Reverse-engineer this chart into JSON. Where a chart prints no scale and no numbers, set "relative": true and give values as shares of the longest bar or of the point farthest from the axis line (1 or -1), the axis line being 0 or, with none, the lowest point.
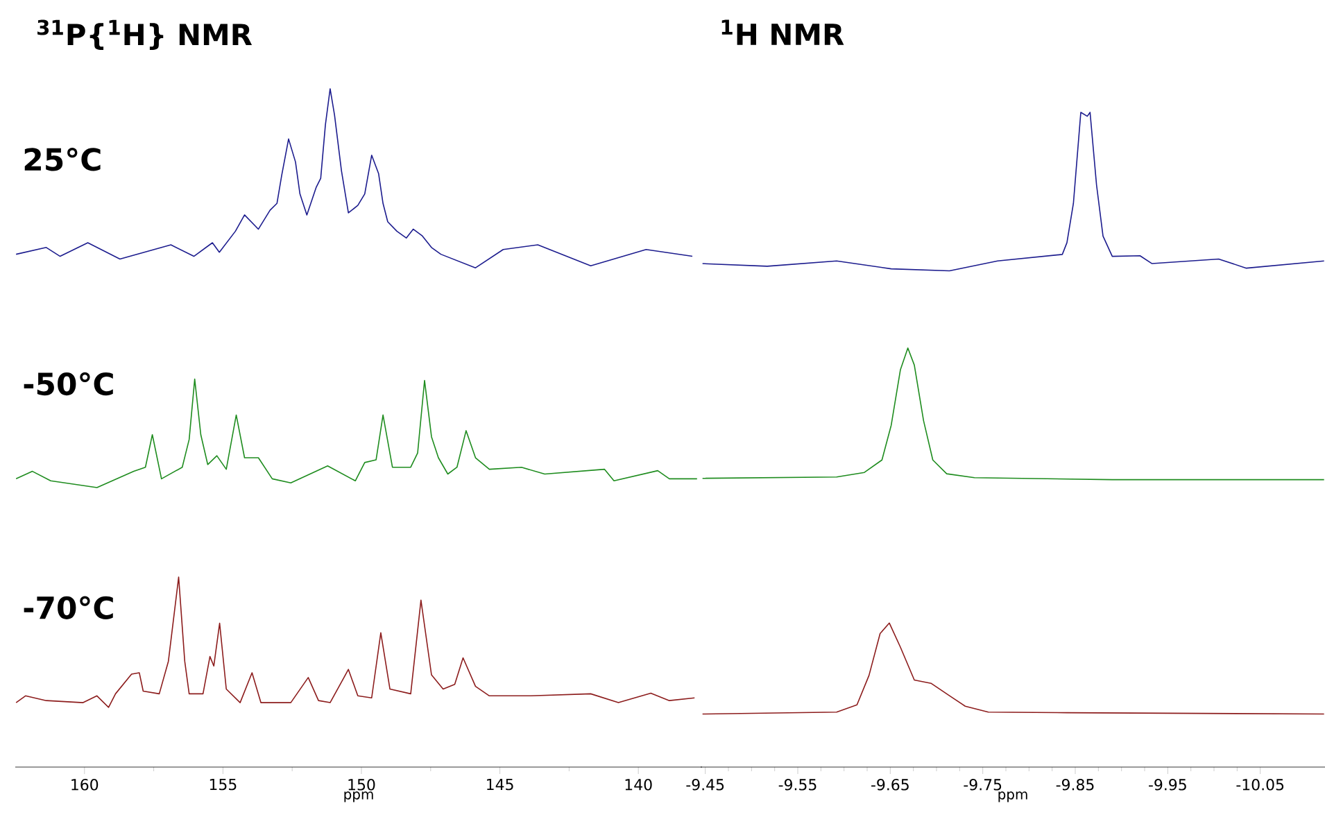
{
  "chart_data": [
    {
      "type": "line",
      "title": "$^{31}$P{$^{1}$H} NMR",
      "xlabel": "ppm",
      "relative": true,
      "xlim": [
        162.5,
        137.7
      ],
      "xticks": [
        160,
        155,
        150,
        145,
        140
      ],
      "series": [
        {
          "name": "25°C",
          "color": "#1c1c8e",
          "x": [
            162.47,
            161.38,
            160.88,
            159.88,
            158.72,
            156.88,
            156.05,
            155.38,
            155.13,
            154.55,
            154.22,
            153.72,
            153.3,
            153.05,
            152.88,
            152.63,
            152.38,
            152.22,
            151.97,
            151.63,
            151.47,
            151.3,
            151.13,
            150.97,
            150.72,
            150.47,
            150.13,
            149.88,
            149.63,
            149.38,
            149.22,
            149.05,
            148.72,
            148.38,
            148.13,
            147.8,
            147.47,
            147.13,
            145.88,
            144.88,
            143.63,
            141.72,
            139.72,
            138.05
          ],
          "values": [
            0.756,
            0.766,
            0.753,
            0.773,
            0.749,
            0.77,
            0.753,
            0.773,
            0.759,
            0.79,
            0.814,
            0.793,
            0.821,
            0.831,
            0.872,
            0.926,
            0.892,
            0.845,
            0.814,
            0.855,
            0.868,
            0.947,
            1,
            0.961,
            0.879,
            0.817,
            0.828,
            0.845,
            0.902,
            0.875,
            0.831,
            0.804,
            0.79,
            0.78,
            0.793,
            0.783,
            0.766,
            0.756,
            0.736,
            0.763,
            0.77,
            0.739,
            0.763,
            0.753
          ]
        },
        {
          "name": "-50°C",
          "color": "#1e8c1e",
          "x": [
            162.47,
            161.88,
            161.22,
            159.55,
            158.22,
            157.8,
            157.55,
            157.22,
            156.47,
            156.22,
            156.02,
            155.8,
            155.55,
            155.22,
            154.88,
            154.52,
            154.22,
            153.72,
            153.22,
            152.55,
            151.22,
            150.22,
            149.88,
            149.47,
            149.22,
            148.88,
            148.22,
            147.97,
            147.72,
            147.47,
            147.22,
            146.88,
            146.55,
            146.22,
            145.88,
            145.38,
            144.22,
            143.38,
            141.22,
            140.88,
            139.3,
            138.88,
            137.88
          ],
          "values": [
            0.425,
            0.436,
            0.422,
            0.412,
            0.436,
            0.442,
            0.49,
            0.425,
            0.442,
            0.483,
            0.572,
            0.49,
            0.446,
            0.459,
            0.439,
            0.519,
            0.456,
            0.456,
            0.425,
            0.419,
            0.444,
            0.422,
            0.449,
            0.453,
            0.519,
            0.442,
            0.442,
            0.463,
            0.57,
            0.487,
            0.456,
            0.432,
            0.442,
            0.496,
            0.456,
            0.439,
            0.442,
            0.432,
            0.439,
            0.422,
            0.437,
            0.425,
            0.425
          ]
        },
        {
          "name": "-70°C",
          "color": "#8c1c1c",
          "x": [
            162.47,
            162.13,
            161.38,
            160.05,
            159.55,
            159.13,
            158.88,
            158.3,
            158.02,
            157.88,
            157.3,
            156.97,
            156.6,
            156.38,
            156.22,
            155.72,
            155.47,
            155.33,
            155.12,
            154.88,
            154.38,
            153.95,
            153.63,
            152.55,
            151.92,
            151.55,
            151.13,
            150.63,
            150.47,
            150.13,
            149.63,
            149.3,
            148.97,
            148.22,
            147.85,
            147.47,
            147.05,
            146.63,
            146.33,
            145.88,
            145.38,
            143.88,
            141.72,
            140.72,
            139.55,
            138.88,
            137.97
          ],
          "values": [
            0.095,
            0.105,
            0.098,
            0.095,
            0.105,
            0.088,
            0.108,
            0.137,
            0.139,
            0.112,
            0.108,
            0.156,
            0.28,
            0.156,
            0.108,
            0.108,
            0.163,
            0.149,
            0.212,
            0.115,
            0.095,
            0.139,
            0.095,
            0.095,
            0.132,
            0.098,
            0.095,
            0.132,
            0.144,
            0.105,
            0.102,
            0.198,
            0.115,
            0.108,
            0.246,
            0.136,
            0.115,
            0.122,
            0.161,
            0.119,
            0.105,
            0.105,
            0.108,
            0.095,
            0.109,
            0.098,
            0.102
          ]
        }
      ]
    },
    {
      "type": "line",
      "title": "$^{1}$H NMR",
      "xlabel": "ppm",
      "relative": true,
      "xlim": [
        -9.445,
        -10.12
      ],
      "xticks": [
        -9.45,
        -9.55,
        -9.65,
        -9.75,
        -9.85,
        -9.95,
        -10.05
      ],
      "series": [
        {
          "color": "#1c1c8e",
          "x": [
            -9.447,
            -9.517,
            -9.592,
            -9.651,
            -9.714,
            -9.766,
            -9.836,
            -9.841,
            -9.848,
            -9.856,
            -9.863,
            -9.866,
            -9.873,
            -9.88,
            -9.89,
            -9.92,
            -9.933,
            -10.005,
            -10.035,
            -10.119
          ],
          "values": [
            0.769,
            0.765,
            0.773,
            0.761,
            0.758,
            0.773,
            0.783,
            0.801,
            0.861,
            1,
            0.994,
            1,
            0.889,
            0.811,
            0.78,
            0.781,
            0.769,
            0.776,
            0.762,
            0.773
          ]
        },
        {
          "color": "#1e8c1e",
          "x": [
            -9.447,
            -9.592,
            -9.622,
            -9.641,
            -9.651,
            -9.661,
            -9.669,
            -9.676,
            -9.686,
            -9.696,
            -9.711,
            -9.741,
            -9.89,
            -10.119
          ],
          "values": [
            0.441,
            0.443,
            0.45,
            0.469,
            0.522,
            0.607,
            0.64,
            0.614,
            0.529,
            0.469,
            0.448,
            0.442,
            0.439,
            0.439
          ]
        },
        {
          "color": "#8c1c1c",
          "x": [
            -9.447,
            -9.592,
            -9.614,
            -9.627,
            -9.639,
            -9.649,
            -9.661,
            -9.676,
            -9.694,
            -9.714,
            -9.731,
            -9.756,
            -9.841,
            -10.119
          ],
          "values": [
            0.081,
            0.084,
            0.095,
            0.14,
            0.204,
            0.22,
            0.183,
            0.133,
            0.128,
            0.109,
            0.093,
            0.084,
            0.083,
            0.081
          ]
        }
      ]
    }
  ]
}
